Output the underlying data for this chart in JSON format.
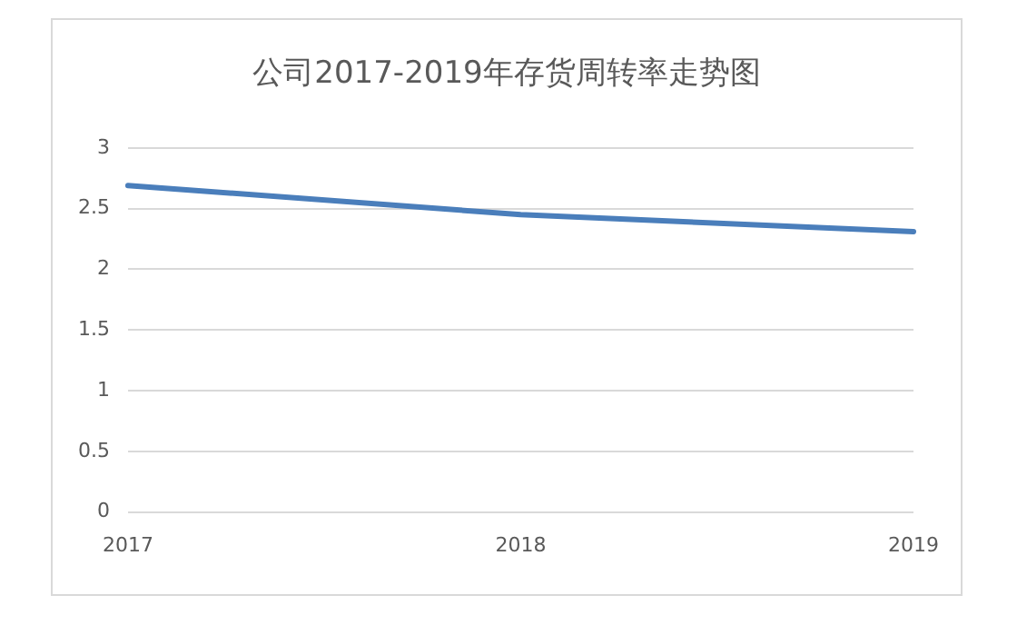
{
  "chart_data": {
    "type": "line",
    "title": "公司2017-2019年存货周转率走势图",
    "categories": [
      "2017",
      "2018",
      "2019"
    ],
    "series": [
      {
        "color": "#4a7ebb",
        "values": [
          2.69,
          2.45,
          2.31
        ]
      }
    ],
    "ylim": [
      0,
      3
    ],
    "yticks": [
      0,
      0.5,
      1,
      1.5,
      2,
      2.5,
      3
    ],
    "grid": "y",
    "legend": false,
    "marker": "none",
    "line_style": "solid"
  }
}
